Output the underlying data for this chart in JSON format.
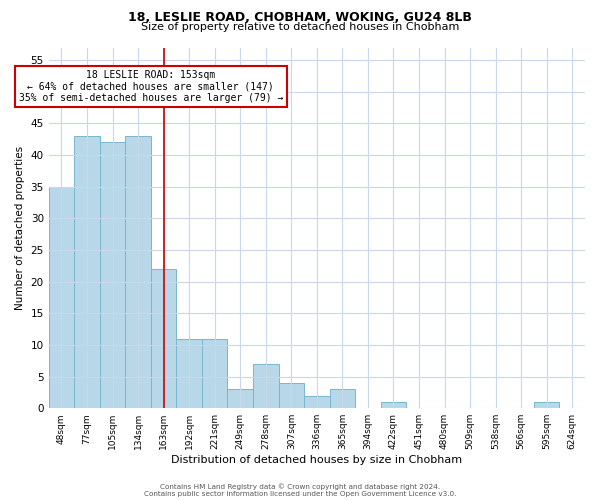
{
  "title1": "18, LESLIE ROAD, CHOBHAM, WOKING, GU24 8LB",
  "title2": "Size of property relative to detached houses in Chobham",
  "xlabel": "Distribution of detached houses by size in Chobham",
  "ylabel": "Number of detached properties",
  "bar_labels": [
    "48sqm",
    "77sqm",
    "105sqm",
    "134sqm",
    "163sqm",
    "192sqm",
    "221sqm",
    "249sqm",
    "278sqm",
    "307sqm",
    "336sqm",
    "365sqm",
    "394sqm",
    "422sqm",
    "451sqm",
    "480sqm",
    "509sqm",
    "538sqm",
    "566sqm",
    "595sqm",
    "624sqm"
  ],
  "bar_values": [
    35,
    43,
    42,
    43,
    22,
    11,
    11,
    3,
    7,
    4,
    2,
    3,
    0,
    1,
    0,
    0,
    0,
    0,
    0,
    1,
    0
  ],
  "bar_color": "#b8d8ea",
  "bar_edge_color": "#7ab5d0",
  "ylim": [
    0,
    57
  ],
  "yticks": [
    0,
    5,
    10,
    15,
    20,
    25,
    30,
    35,
    40,
    45,
    50,
    55
  ],
  "vline_x_index": 4,
  "vline_color": "#cc0000",
  "annotation_title": "18 LESLIE ROAD: 153sqm",
  "annotation_line1": "← 64% of detached houses are smaller (147)",
  "annotation_line2": "35% of semi-detached houses are larger (79) →",
  "annotation_box_color": "#ffffff",
  "annotation_box_edge": "#cc0000",
  "footer1": "Contains HM Land Registry data © Crown copyright and database right 2024.",
  "footer2": "Contains public sector information licensed under the Open Government Licence v3.0.",
  "background_color": "#ffffff",
  "grid_color": "#c8d8e8"
}
